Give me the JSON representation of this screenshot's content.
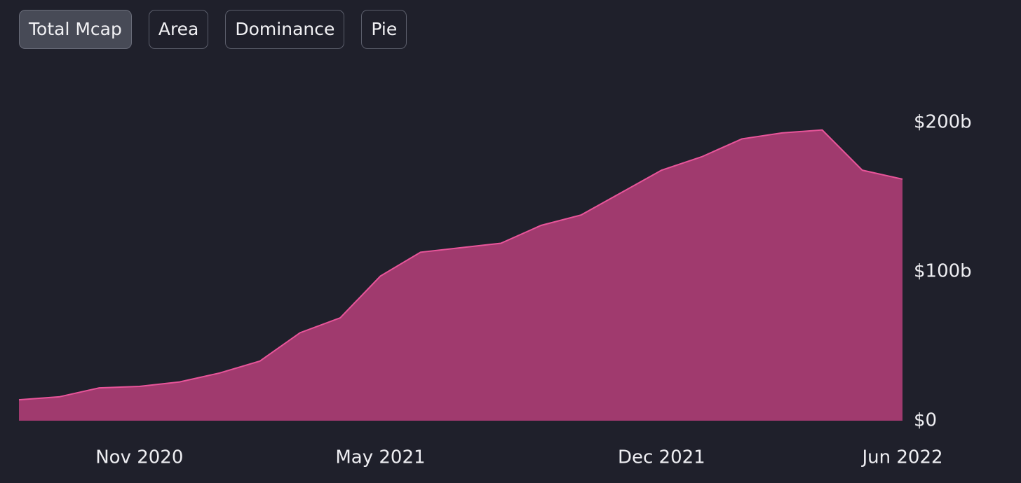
{
  "tabs": {
    "items": [
      "Total Mcap",
      "Area",
      "Dominance",
      "Pie"
    ],
    "active": 0
  },
  "chart_data": {
    "type": "area",
    "x": [
      "2020-08",
      "2020-09",
      "2020-10",
      "2020-11",
      "2020-12",
      "2021-01",
      "2021-02",
      "2021-03",
      "2021-04",
      "2021-05",
      "2021-06",
      "2021-07",
      "2021-08",
      "2021-09",
      "2021-10",
      "2021-11",
      "2021-12",
      "2022-01",
      "2022-02",
      "2022-03",
      "2022-04",
      "2022-05",
      "2022-06"
    ],
    "values": [
      14,
      16,
      22,
      23,
      26,
      32,
      40,
      59,
      69,
      97,
      113,
      116,
      119,
      131,
      138,
      153,
      168,
      177,
      189,
      193,
      195,
      168,
      162
    ],
    "color": "#a03a6e",
    "line_color": "#e8559a",
    "xlim": [
      "2020-08",
      "2022-06"
    ],
    "xticks": [
      {
        "value": "2020-11",
        "label": "Nov 2020"
      },
      {
        "value": "2021-05",
        "label": "May 2021"
      },
      {
        "value": "2021-12",
        "label": "Dec 2021"
      },
      {
        "value": "2022-06",
        "label": "Jun 2022"
      }
    ],
    "ylim": [
      0,
      200
    ],
    "yticks": [
      {
        "value": 0,
        "label": "$0"
      },
      {
        "value": 100,
        "label": "$100b"
      },
      {
        "value": 200,
        "label": "$200b"
      }
    ],
    "grid": false
  }
}
